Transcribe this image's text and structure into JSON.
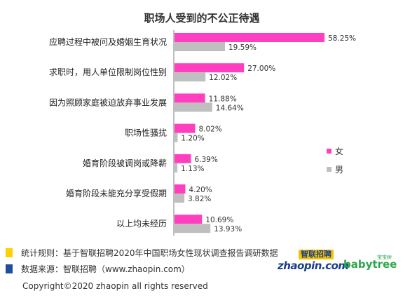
{
  "chart_data": {
    "type": "bar",
    "orientation": "horizontal",
    "title": "职场人受到的不公正待遇",
    "categories": [
      "应聘过程中被问及婚姻生育状况",
      "求职时，用人单位限制岗位性别",
      "因为照顾家庭被迫放弃事业发展",
      "职场性骚扰",
      "婚育阶段被调岗或降薪",
      "婚育阶段未能充分享受假期",
      "以上均未经历"
    ],
    "series": [
      {
        "name": "女",
        "color": "#ff3fbf",
        "values": [
          58.25,
          27.0,
          11.88,
          8.02,
          6.39,
          4.2,
          10.69
        ],
        "labels": [
          "58.25%",
          "27.00%",
          "11.88%",
          "8.02%",
          "6.39%",
          "4.20%",
          "10.69%"
        ]
      },
      {
        "name": "男",
        "color": "#bfbfbf",
        "values": [
          19.59,
          12.02,
          14.64,
          1.2,
          1.13,
          3.82,
          13.93
        ],
        "labels": [
          "19.59%",
          "12.02%",
          "14.64%",
          "1.20%",
          "1.13%",
          "3.82%",
          "13.93%"
        ]
      }
    ],
    "xlim": [
      0,
      60
    ],
    "grid": false,
    "legend_position": "right"
  },
  "notes": {
    "rule": "统计规则：基于智联招聘2020年中国职场女性现状调查报告调研数据",
    "rule_color": "#ffd100",
    "source": "数据来源：智联招聘（www.zhaopin.com）",
    "source_color": "#1f4e9c"
  },
  "copyright": "Copyright©2020 zhaopin all rights reserved",
  "logos": {
    "zhaopin_top": "智联招聘",
    "zhaopin_bottom": "zhaopin.com",
    "babytree_small": "宝宝树",
    "babytree_main": "babytree"
  }
}
